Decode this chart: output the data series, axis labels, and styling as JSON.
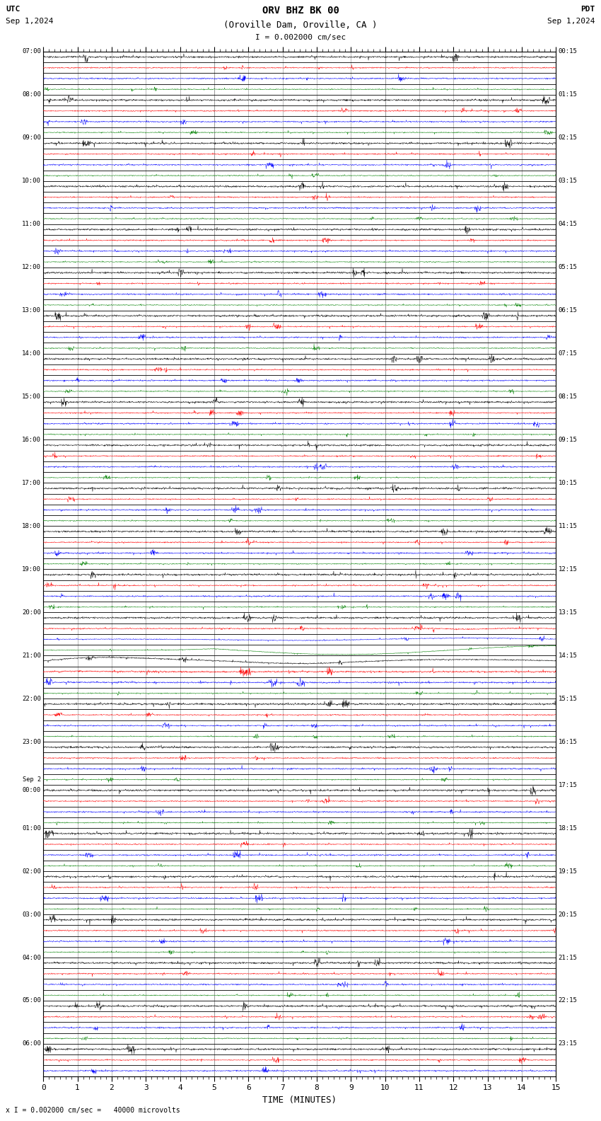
{
  "title_line1": "ORV BHZ BK 00",
  "title_line2": "(Oroville Dam, Oroville, CA )",
  "scale_label": "I = 0.002000 cm/sec",
  "utc_label": "UTC",
  "pdt_label": "PDT",
  "date_left": "Sep 1,2024",
  "date_right": "Sep 1,2024",
  "bottom_note": "x I = 0.002000 cm/sec =   40000 microvolts",
  "xlabel": "TIME (MINUTES)",
  "bg_color": "#ffffff",
  "trace_color_black": "#000000",
  "trace_color_red": "#ff0000",
  "trace_color_blue": "#0000ff",
  "trace_color_green": "#008000",
  "row_labels_left": [
    "07:00",
    "",
    "",
    "",
    "08:00",
    "",
    "",
    "",
    "09:00",
    "",
    "",
    "",
    "10:00",
    "",
    "",
    "",
    "11:00",
    "",
    "",
    "",
    "12:00",
    "",
    "",
    "",
    "13:00",
    "",
    "",
    "",
    "14:00",
    "",
    "",
    "",
    "15:00",
    "",
    "",
    "",
    "16:00",
    "",
    "",
    "",
    "17:00",
    "",
    "",
    "",
    "18:00",
    "",
    "",
    "",
    "19:00",
    "",
    "",
    "",
    "20:00",
    "",
    "",
    "",
    "21:00",
    "",
    "",
    "",
    "22:00",
    "",
    "",
    "",
    "23:00",
    "",
    "",
    "",
    "Sep 2\n00:00",
    "",
    "",
    "",
    "01:00",
    "",
    "",
    "",
    "02:00",
    "",
    "",
    "",
    "03:00",
    "",
    "",
    "",
    "04:00",
    "",
    "",
    "",
    "05:00",
    "",
    "",
    "",
    "06:00",
    "",
    ""
  ],
  "row_labels_right": [
    "00:15",
    "",
    "",
    "",
    "01:15",
    "",
    "",
    "",
    "02:15",
    "",
    "",
    "",
    "03:15",
    "",
    "",
    "",
    "04:15",
    "",
    "",
    "",
    "05:15",
    "",
    "",
    "",
    "06:15",
    "",
    "",
    "",
    "07:15",
    "",
    "",
    "",
    "08:15",
    "",
    "",
    "",
    "09:15",
    "",
    "",
    "",
    "10:15",
    "",
    "",
    "",
    "11:15",
    "",
    "",
    "",
    "12:15",
    "",
    "",
    "",
    "13:15",
    "",
    "",
    "",
    "14:15",
    "",
    "",
    "",
    "15:15",
    "",
    "",
    "",
    "16:15",
    "",
    "",
    "",
    "17:15",
    "",
    "",
    "",
    "18:15",
    "",
    "",
    "",
    "19:15",
    "",
    "",
    "",
    "20:15",
    "",
    "",
    "",
    "21:15",
    "",
    "",
    "",
    "22:15",
    "",
    "",
    "",
    "23:15",
    "",
    ""
  ]
}
